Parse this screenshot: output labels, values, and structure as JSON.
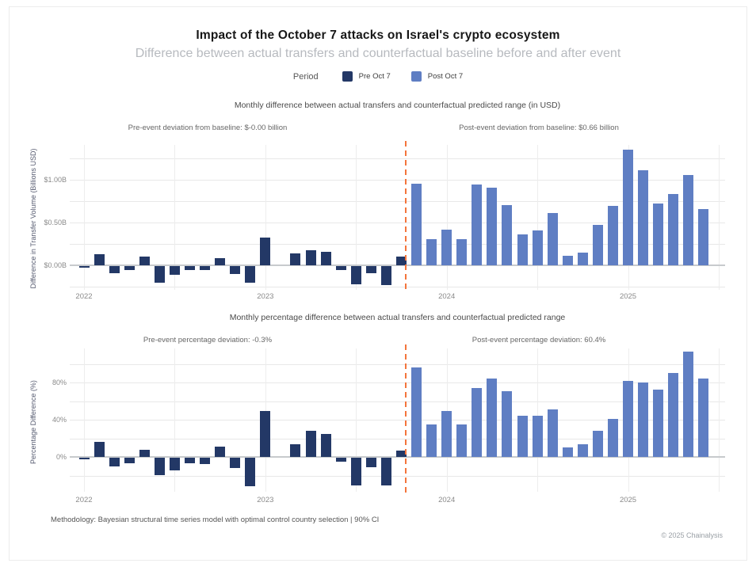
{
  "page": {
    "title": "Impact of the October 7 attacks on Israel's crypto ecosystem",
    "subtitle": "Difference between actual transfers and counterfactual baseline before and after event",
    "methodology": "Methodology: Bayesian structural time series model with optimal control country selection | 90% CI",
    "copyright": "© 2025 Chainalysis"
  },
  "legend": {
    "label": "Period",
    "items": [
      {
        "label": "Pre Oct 7",
        "color": "#233866"
      },
      {
        "label": "Post Oct 7",
        "color": "#5f7ec3"
      }
    ]
  },
  "colors": {
    "pre_bar": "#233866",
    "post_bar": "#5f7ec3",
    "event_line": "#f4743b",
    "gridline": "#e8e8e8",
    "zero_line": "#c7cacd"
  },
  "chart_data": [
    {
      "type": "bar",
      "title": "Monthly difference between actual transfers and counterfactual predicted range (in USD)",
      "ylabel": "Difference in Transfer Volume (Billions USD)",
      "annotation_pre": "Pre-event deviation from baseline: $-0.00 billion",
      "annotation_post": "Post-event deviation from baseline: $0.66 billion",
      "x_months": [
        "2022-01",
        "2022-02",
        "2022-03",
        "2022-04",
        "2022-05",
        "2022-06",
        "2022-07",
        "2022-08",
        "2022-09",
        "2022-10",
        "2022-11",
        "2022-12",
        "2023-01",
        "2023-02",
        "2023-03",
        "2023-04",
        "2023-05",
        "2023-06",
        "2023-07",
        "2023-08",
        "2023-09",
        "2023-10",
        "2023-11",
        "2023-12",
        "2024-01",
        "2024-02",
        "2024-03",
        "2024-04",
        "2024-05",
        "2024-06",
        "2024-07",
        "2024-08",
        "2024-09",
        "2024-10",
        "2024-11",
        "2024-12",
        "2025-01",
        "2025-02",
        "2025-03",
        "2025-04",
        "2025-05",
        "2025-06"
      ],
      "x_year_ticks": [
        {
          "index": 0,
          "label": "2022"
        },
        {
          "index": 12,
          "label": "2023"
        },
        {
          "index": 24,
          "label": "2024"
        },
        {
          "index": 36,
          "label": "2025"
        }
      ],
      "event_month_index": 21.3,
      "event_label": "October 7, 2023",
      "yticks": [
        {
          "value": 0,
          "label": "$0.00B"
        },
        {
          "value": 0.5,
          "label": "$0.50B"
        },
        {
          "value": 1,
          "label": "$1.00B"
        }
      ],
      "ygrid_values": [
        -0.25,
        0.25,
        0.5,
        0.75,
        1,
        1.25
      ],
      "ylim": [
        -0.28,
        1.42
      ],
      "grid": true,
      "legend_position": "top-center",
      "series": [
        {
          "name": "Pre Oct 7",
          "start_index": 0,
          "values": [
            -0.02,
            0.13,
            -0.08,
            -0.05,
            0.1,
            -0.19,
            -0.1,
            -0.05,
            -0.05,
            0.08,
            -0.09,
            -0.19,
            0.32,
            0.0,
            0.14,
            0.18,
            0.16,
            -0.05,
            -0.21,
            -0.08,
            -0.22,
            0.1
          ]
        },
        {
          "name": "Post Oct 7",
          "start_index": 22,
          "values": [
            0.95,
            0.31,
            0.42,
            0.31,
            0.94,
            0.91,
            0.7,
            0.36,
            0.41,
            0.61,
            0.11,
            0.15,
            0.47,
            0.69,
            1.35,
            1.11,
            0.72,
            0.83,
            1.06,
            0.66
          ]
        }
      ]
    },
    {
      "type": "bar",
      "title": "Monthly percentage difference between actual transfers and counterfactual predicted range",
      "ylabel": "Percentage Difference (%)",
      "annotation_pre": "Pre-event percentage deviation: -0.3%",
      "annotation_post": "Post-event percentage deviation: 60.4%",
      "x_months": [
        "2022-01",
        "2022-02",
        "2022-03",
        "2022-04",
        "2022-05",
        "2022-06",
        "2022-07",
        "2022-08",
        "2022-09",
        "2022-10",
        "2022-11",
        "2022-12",
        "2023-01",
        "2023-02",
        "2023-03",
        "2023-04",
        "2023-05",
        "2023-06",
        "2023-07",
        "2023-08",
        "2023-09",
        "2023-10",
        "2023-11",
        "2023-12",
        "2024-01",
        "2024-02",
        "2024-03",
        "2024-04",
        "2024-05",
        "2024-06",
        "2024-07",
        "2024-08",
        "2024-09",
        "2024-10",
        "2024-11",
        "2024-12",
        "2025-01",
        "2025-02",
        "2025-03",
        "2025-04",
        "2025-05",
        "2025-06"
      ],
      "x_year_ticks": [
        {
          "index": 0,
          "label": "2022"
        },
        {
          "index": 12,
          "label": "2023"
        },
        {
          "index": 24,
          "label": "2024"
        },
        {
          "index": 36,
          "label": "2025"
        }
      ],
      "event_month_index": 21.3,
      "event_label": "October 7, 2023",
      "yticks": [
        {
          "value": 0,
          "label": "0%"
        },
        {
          "value": 40,
          "label": "40%"
        },
        {
          "value": 80,
          "label": "80%"
        }
      ],
      "ygrid_values": [
        -20,
        20,
        40,
        60,
        80,
        100
      ],
      "ylim": [
        -35,
        118
      ],
      "grid": true,
      "legend_position": "top-center",
      "series": [
        {
          "name": "Pre Oct 7",
          "start_index": 0,
          "values": [
            -2,
            16,
            -9,
            -6,
            8,
            -19,
            -14,
            -6,
            -7,
            11,
            -11,
            -31,
            49,
            0,
            14,
            28,
            25,
            -4,
            -30,
            -10,
            -30,
            7
          ]
        },
        {
          "name": "Post Oct 7",
          "start_index": 22,
          "values": [
            96,
            35,
            49,
            35,
            74,
            84,
            71,
            44,
            44,
            51,
            10,
            14,
            28,
            41,
            82,
            80,
            72,
            90,
            113,
            84
          ]
        }
      ]
    }
  ]
}
